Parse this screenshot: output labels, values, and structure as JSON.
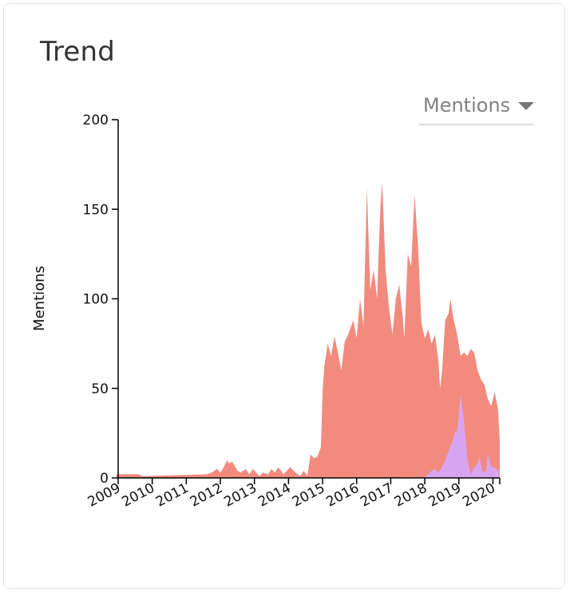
{
  "header": {
    "title": "Trend"
  },
  "metric_select": {
    "selected": "Mentions"
  },
  "chart_data": {
    "type": "area",
    "ylabel": "Mentions",
    "ylim": [
      0,
      200
    ],
    "yticks": [
      0,
      50,
      100,
      150,
      200
    ],
    "xlim": [
      2009,
      2020.2
    ],
    "xticks": [
      2009,
      2010,
      2011,
      2012,
      2013,
      2014,
      2015,
      2016,
      2017,
      2018,
      2019,
      2020
    ],
    "grid": false,
    "legend": "none",
    "series": [
      {
        "color": "#f28a7e",
        "x": [
          2008.95,
          2009.6,
          2009.7,
          2011.6,
          2011.75,
          2011.9,
          2012.0,
          2012.1,
          2012.2,
          2012.25,
          2012.35,
          2012.5,
          2012.6,
          2012.75,
          2012.85,
          2012.95,
          2013.05,
          2013.15,
          2013.25,
          2013.4,
          2013.5,
          2013.6,
          2013.7,
          2013.85,
          2013.95,
          2014.05,
          2014.2,
          2014.35,
          2014.45,
          2014.55,
          2014.65,
          2014.75,
          2014.85,
          2014.95,
          2015.0,
          2015.05,
          2015.15,
          2015.25,
          2015.35,
          2015.45,
          2015.55,
          2015.65,
          2015.75,
          2015.9,
          2016.0,
          2016.1,
          2016.2,
          2016.3,
          2016.4,
          2016.5,
          2016.6,
          2016.65,
          2016.7,
          2016.75,
          2016.85,
          2016.95,
          2017.05,
          2017.15,
          2017.25,
          2017.35,
          2017.4,
          2017.5,
          2017.6,
          2017.7,
          2017.8,
          2017.9,
          2018.0,
          2018.1,
          2018.2,
          2018.3,
          2018.4,
          2018.45,
          2018.5,
          2018.6,
          2018.7,
          2018.75,
          2018.85,
          2018.95,
          2019.05,
          2019.15,
          2019.25,
          2019.35,
          2019.45,
          2019.55,
          2019.65,
          2019.75,
          2019.85,
          2019.95,
          2020.05,
          2020.15,
          2020.2
        ],
        "values": [
          2,
          2,
          1,
          2,
          3,
          5,
          3,
          6,
          10,
          8,
          9,
          4,
          3,
          5,
          2,
          5,
          3,
          1,
          3,
          2,
          5,
          3,
          6,
          2,
          4,
          6,
          3,
          1,
          4,
          1,
          13,
          11,
          12,
          17,
          48,
          62,
          75,
          68,
          79,
          70,
          60,
          76,
          80,
          88,
          78,
          100,
          85,
          162,
          105,
          116,
          100,
          128,
          152,
          165,
          116,
          95,
          80,
          100,
          108,
          90,
          78,
          125,
          118,
          158,
          130,
          87,
          78,
          83,
          75,
          80,
          65,
          50,
          58,
          88,
          92,
          100,
          88,
          80,
          68,
          70,
          68,
          72,
          70,
          60,
          55,
          52,
          44,
          40,
          48,
          38,
          20
        ]
      },
      {
        "color": "#d9a4ef",
        "x": [
          2017.95,
          2018.1,
          2018.2,
          2018.3,
          2018.4,
          2018.5,
          2018.6,
          2018.7,
          2018.8,
          2018.9,
          2018.95,
          2019.05,
          2019.15,
          2019.25,
          2019.35,
          2019.45,
          2019.55,
          2019.6,
          2019.7,
          2019.8,
          2019.85,
          2019.95,
          2020.05,
          2020.15,
          2020.2
        ],
        "values": [
          0,
          2,
          4,
          5,
          3,
          6,
          10,
          15,
          20,
          26,
          26,
          47,
          32,
          10,
          2,
          6,
          8,
          12,
          3,
          4,
          14,
          6,
          6,
          4,
          0
        ]
      }
    ]
  }
}
